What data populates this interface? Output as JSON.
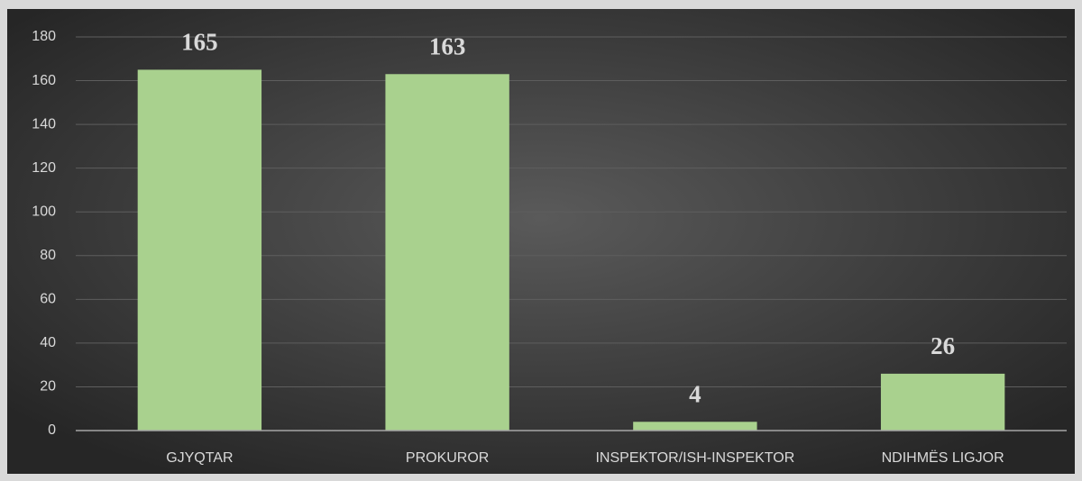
{
  "chart_data": {
    "type": "bar",
    "categories": [
      "GJYQTAR",
      "PROKUROR",
      "INSPEKTOR/ISH-INSPEKTOR",
      "NDIHMËS LIGJOR"
    ],
    "values": [
      165,
      163,
      4,
      26
    ],
    "color": "#a9d18e",
    "ylim": [
      0,
      180
    ],
    "yticks": [
      0,
      20,
      40,
      60,
      80,
      100,
      120,
      140,
      160,
      180
    ],
    "grid": true
  }
}
